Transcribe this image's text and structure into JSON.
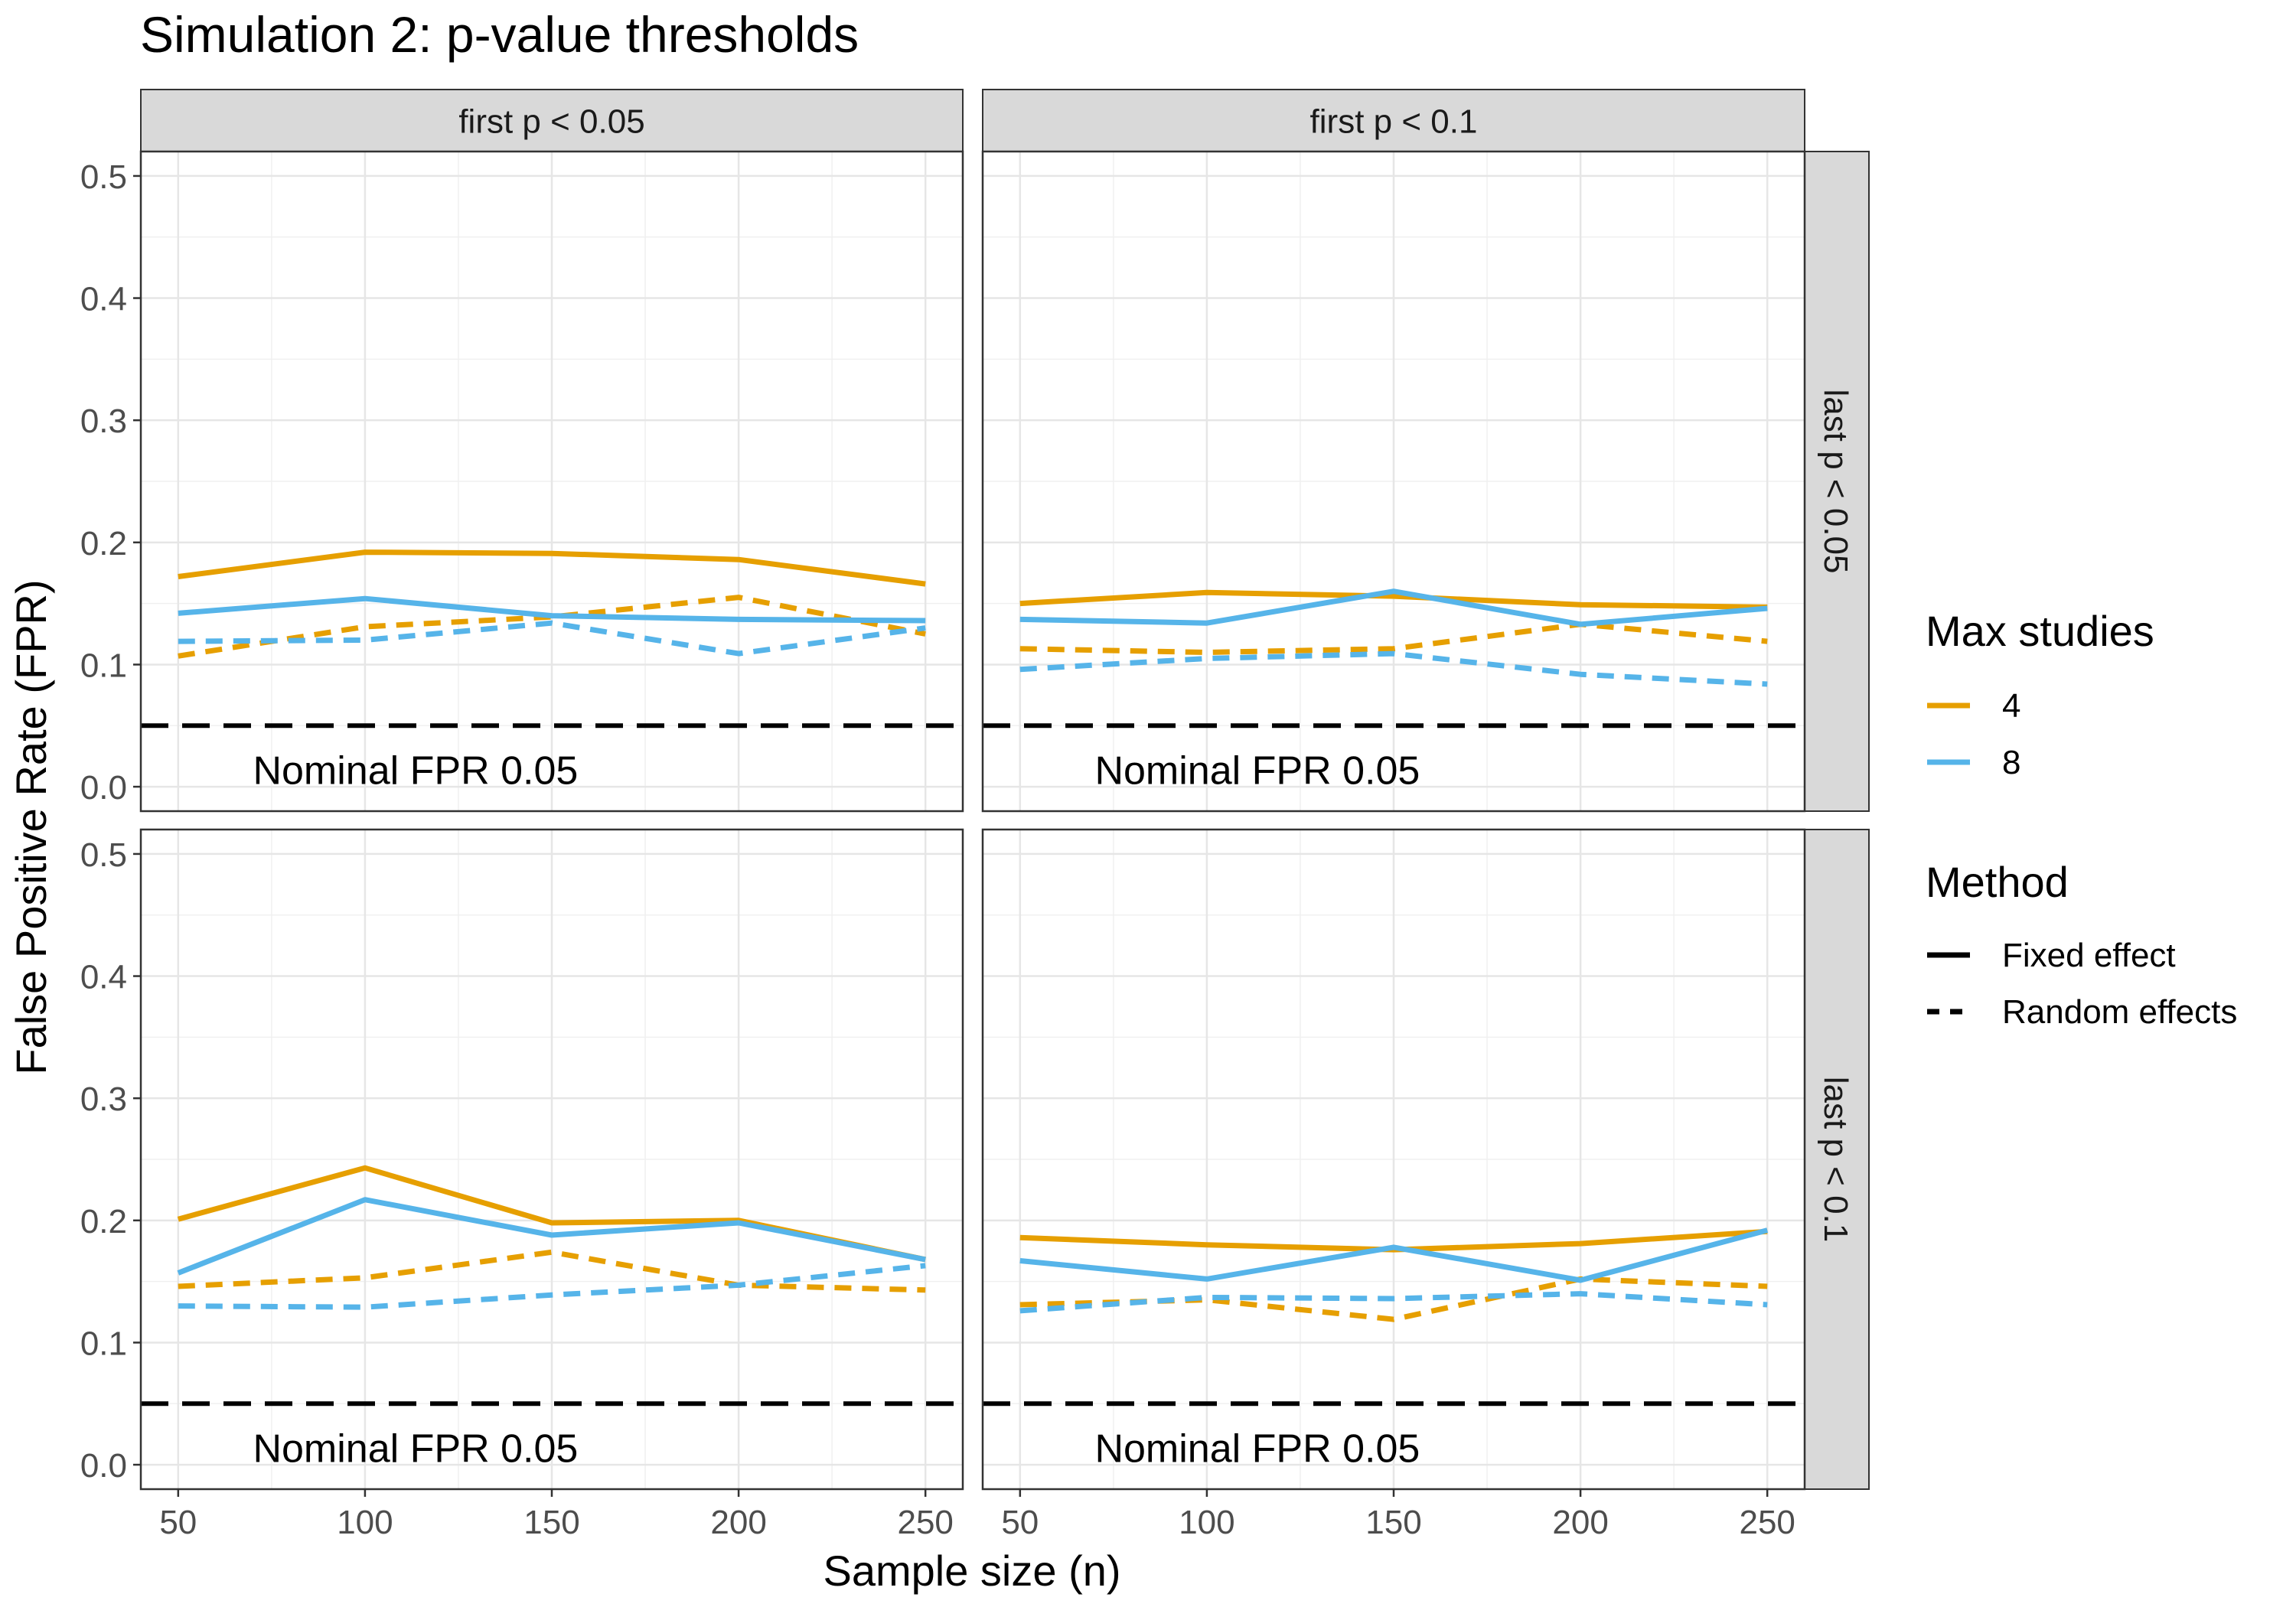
{
  "chart_data": {
    "type": "line",
    "title": "Simulation 2: p-value thresholds",
    "xlabel": "Sample size (n)",
    "ylabel": "False Positive Rate (FPR)",
    "x_ticks": [
      50,
      100,
      150,
      200,
      250
    ],
    "y_ticks": [
      0.0,
      0.1,
      0.2,
      0.3,
      0.4,
      0.5
    ],
    "y_tick_labels": [
      "0.0",
      "0.1",
      "0.2",
      "0.3",
      "0.4",
      "0.5"
    ],
    "xlim": [
      40,
      260
    ],
    "ylim": [
      -0.02,
      0.52
    ],
    "grid": true,
    "reference_line": {
      "y": 0.05,
      "label": "Nominal FPR 0.05",
      "style": "dashed",
      "color": "#000000"
    },
    "col_facets": [
      "first p < 0.05",
      "first p < 0.1"
    ],
    "row_facets": [
      "last p < 0.05",
      "last p < 0.1"
    ],
    "legend": {
      "placement": "right",
      "color_title": "Max studies",
      "color_entries": [
        {
          "label": "4",
          "color": "#E69F00"
        },
        {
          "label": "8",
          "color": "#56B4E9"
        }
      ],
      "linetype_title": "Method",
      "linetype_entries": [
        {
          "label": "Fixed effect",
          "dash": "solid"
        },
        {
          "label": "Random effects",
          "dash": "dashed"
        }
      ]
    },
    "panels": [
      {
        "row": 0,
        "col": 0,
        "x": [
          50,
          100,
          150,
          200,
          250
        ],
        "series": [
          {
            "max_studies": "4",
            "method": "Fixed effect",
            "color": "#E69F00",
            "dash": "solid",
            "values": [
              0.172,
              0.192,
              0.191,
              0.186,
              0.166
            ]
          },
          {
            "max_studies": "8",
            "method": "Fixed effect",
            "color": "#56B4E9",
            "dash": "solid",
            "values": [
              0.142,
              0.154,
              0.14,
              0.137,
              0.136
            ]
          },
          {
            "max_studies": "4",
            "method": "Random effects",
            "color": "#E69F00",
            "dash": "dashed",
            "values": [
              0.107,
              0.131,
              0.139,
              0.155,
              0.125
            ]
          },
          {
            "max_studies": "8",
            "method": "Random effects",
            "color": "#56B4E9",
            "dash": "dashed",
            "values": [
              0.119,
              0.12,
              0.134,
              0.109,
              0.13
            ]
          }
        ]
      },
      {
        "row": 0,
        "col": 1,
        "x": [
          50,
          100,
          150,
          200,
          250
        ],
        "series": [
          {
            "max_studies": "4",
            "method": "Fixed effect",
            "color": "#E69F00",
            "dash": "solid",
            "values": [
              0.15,
              0.159,
              0.156,
              0.149,
              0.147
            ]
          },
          {
            "max_studies": "8",
            "method": "Fixed effect",
            "color": "#56B4E9",
            "dash": "solid",
            "values": [
              0.137,
              0.134,
              0.16,
              0.133,
              0.146
            ]
          },
          {
            "max_studies": "4",
            "method": "Random effects",
            "color": "#E69F00",
            "dash": "dashed",
            "values": [
              0.113,
              0.11,
              0.113,
              0.133,
              0.119
            ]
          },
          {
            "max_studies": "8",
            "method": "Random effects",
            "color": "#56B4E9",
            "dash": "dashed",
            "values": [
              0.096,
              0.105,
              0.109,
              0.092,
              0.084
            ]
          }
        ]
      },
      {
        "row": 1,
        "col": 0,
        "x": [
          50,
          100,
          150,
          200,
          250
        ],
        "series": [
          {
            "max_studies": "4",
            "method": "Fixed effect",
            "color": "#E69F00",
            "dash": "solid",
            "values": [
              0.201,
              0.243,
              0.198,
              0.2,
              0.168
            ]
          },
          {
            "max_studies": "8",
            "method": "Fixed effect",
            "color": "#56B4E9",
            "dash": "solid",
            "values": [
              0.157,
              0.217,
              0.188,
              0.198,
              0.168
            ]
          },
          {
            "max_studies": "4",
            "method": "Random effects",
            "color": "#E69F00",
            "dash": "dashed",
            "values": [
              0.146,
              0.153,
              0.174,
              0.147,
              0.143
            ]
          },
          {
            "max_studies": "8",
            "method": "Random effects",
            "color": "#56B4E9",
            "dash": "dashed",
            "values": [
              0.13,
              0.129,
              0.139,
              0.147,
              0.163
            ]
          }
        ]
      },
      {
        "row": 1,
        "col": 1,
        "x": [
          50,
          100,
          150,
          200,
          250
        ],
        "series": [
          {
            "max_studies": "4",
            "method": "Fixed effect",
            "color": "#E69F00",
            "dash": "solid",
            "values": [
              0.186,
              0.18,
              0.176,
              0.181,
              0.191
            ]
          },
          {
            "max_studies": "8",
            "method": "Fixed effect",
            "color": "#56B4E9",
            "dash": "solid",
            "values": [
              0.167,
              0.152,
              0.178,
              0.151,
              0.192
            ]
          },
          {
            "max_studies": "4",
            "method": "Random effects",
            "color": "#E69F00",
            "dash": "dashed",
            "values": [
              0.131,
              0.135,
              0.119,
              0.152,
              0.146
            ]
          },
          {
            "max_studies": "8",
            "method": "Random effects",
            "color": "#56B4E9",
            "dash": "dashed",
            "values": [
              0.126,
              0.137,
              0.136,
              0.14,
              0.131
            ]
          }
        ]
      }
    ]
  }
}
